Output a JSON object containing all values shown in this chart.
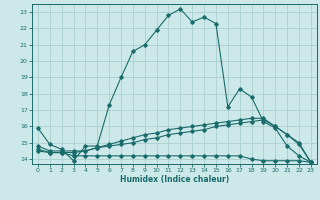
{
  "xlabel": "Humidex (Indice chaleur)",
  "bg_color": "#cce8e8",
  "grid_color": "#aad0d0",
  "line_color": "#1a6b6b",
  "xlim": [
    -0.5,
    23.5
  ],
  "ylim": [
    13.7,
    23.5
  ],
  "xticks": [
    0,
    1,
    2,
    3,
    4,
    5,
    6,
    7,
    8,
    9,
    10,
    11,
    12,
    13,
    14,
    15,
    16,
    17,
    18,
    19,
    20,
    21,
    22,
    23
  ],
  "yticks": [
    14,
    15,
    16,
    17,
    18,
    19,
    20,
    21,
    22,
    23
  ],
  "line1_x": [
    0,
    1,
    2,
    3,
    4,
    5,
    6,
    7,
    8,
    9,
    10,
    11,
    12,
    13,
    14,
    15,
    16,
    17,
    18,
    19,
    20,
    21,
    22,
    23
  ],
  "line1_y": [
    15.9,
    14.9,
    14.6,
    13.9,
    14.8,
    14.8,
    17.3,
    19.0,
    20.6,
    21.0,
    21.9,
    22.8,
    23.2,
    22.4,
    22.7,
    22.3,
    17.2,
    18.3,
    17.8,
    16.3,
    15.9,
    14.8,
    14.2,
    13.8
  ],
  "line2_x": [
    0,
    1,
    2,
    3,
    4,
    5,
    6,
    7,
    8,
    9,
    10,
    11,
    12,
    13,
    14,
    15,
    16,
    17,
    18,
    19,
    20,
    21,
    22,
    23
  ],
  "line2_y": [
    14.8,
    14.5,
    14.5,
    14.5,
    14.5,
    14.7,
    14.8,
    14.9,
    15.0,
    15.2,
    15.3,
    15.5,
    15.6,
    15.7,
    15.8,
    16.0,
    16.1,
    16.2,
    16.3,
    16.4,
    16.0,
    15.5,
    15.0,
    13.8
  ],
  "line3_x": [
    0,
    1,
    2,
    3,
    4,
    5,
    6,
    7,
    8,
    9,
    10,
    11,
    12,
    13,
    14,
    15,
    16,
    17,
    18,
    19,
    20,
    21,
    22,
    23
  ],
  "line3_y": [
    14.5,
    14.4,
    14.4,
    14.2,
    14.2,
    14.2,
    14.2,
    14.2,
    14.2,
    14.2,
    14.2,
    14.2,
    14.2,
    14.2,
    14.2,
    14.2,
    14.2,
    14.2,
    14.0,
    13.9,
    13.9,
    13.9,
    13.9,
    13.8
  ],
  "line4_x": [
    0,
    1,
    2,
    3,
    4,
    5,
    6,
    7,
    8,
    9,
    10,
    11,
    12,
    13,
    14,
    15,
    16,
    17,
    18,
    19,
    20,
    21,
    22,
    23
  ],
  "line4_y": [
    14.6,
    14.4,
    14.4,
    14.4,
    14.5,
    14.7,
    14.9,
    15.1,
    15.3,
    15.5,
    15.6,
    15.8,
    15.9,
    16.0,
    16.1,
    16.2,
    16.3,
    16.4,
    16.5,
    16.5,
    16.0,
    15.5,
    14.9,
    13.8
  ]
}
